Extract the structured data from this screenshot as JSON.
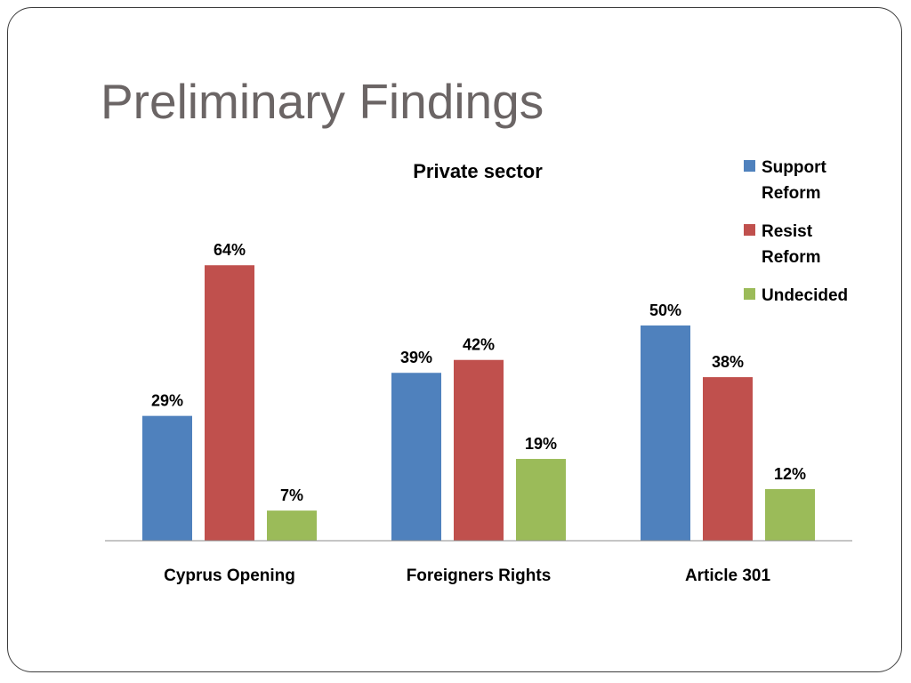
{
  "slide": {
    "title": "Preliminary Findings"
  },
  "chart_data": {
    "type": "bar",
    "title": "Private sector",
    "categories": [
      "Cyprus Opening",
      "Foreigners Rights",
      "Article 301"
    ],
    "series": [
      {
        "name": "Support Reform",
        "values": [
          29,
          39,
          50
        ],
        "color": "#4f81bd"
      },
      {
        "name": "Resist Reform",
        "values": [
          64,
          42,
          38
        ],
        "color": "#c0504d"
      },
      {
        "name": "Undecided",
        "values": [
          7,
          19,
          12
        ],
        "color": "#9bbb59"
      }
    ],
    "value_suffix": "%",
    "ylim": [
      0,
      70
    ],
    "grid": false,
    "legend": {
      "position": "top-right",
      "entries": [
        {
          "lines": [
            "Support",
            "Reform"
          ]
        },
        {
          "lines": [
            "Resist",
            "Reform"
          ]
        },
        {
          "lines": [
            "Undecided"
          ]
        }
      ]
    }
  }
}
